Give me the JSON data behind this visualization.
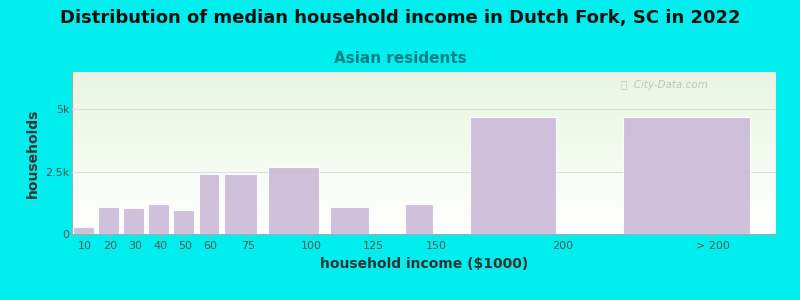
{
  "title": "Distribution of median household income in Dutch Fork, SC in 2022",
  "subtitle": "Asian residents",
  "xlabel": "household income ($1000)",
  "ylabel": "households",
  "background_color": "#00EEEE",
  "bar_color": "#c9b8d8",
  "bar_edge_color": "#ffffff",
  "categories": [
    "10",
    "20",
    "30",
    "40",
    "50",
    "60",
    "75",
    "100",
    "125",
    "150",
    "200",
    "> 200"
  ],
  "bar_lefts": [
    5,
    15,
    25,
    35,
    45,
    55,
    65,
    82,
    107,
    137,
    162,
    222
  ],
  "bar_widths": [
    9,
    9,
    9,
    9,
    9,
    9,
    14,
    22,
    17,
    12,
    37,
    55
  ],
  "values": [
    300,
    1100,
    1050,
    1200,
    950,
    2400,
    2400,
    2700,
    1100,
    1200,
    4700,
    4700
  ],
  "ylim": [
    0,
    6500
  ],
  "yticks": [
    0,
    2500,
    5000
  ],
  "ytick_labels": [
    "0",
    "2.5k",
    "5k"
  ],
  "xlim": [
    5,
    285
  ],
  "xtick_positions": [
    10,
    20,
    30,
    40,
    50,
    60,
    75,
    100,
    125,
    150,
    200,
    260
  ],
  "xtick_labels": [
    "10",
    "20",
    "30",
    "40",
    "50",
    "60",
    "75",
    "100",
    "125",
    "150",
    "200",
    "> 200"
  ],
  "title_fontsize": 13,
  "subtitle_fontsize": 11,
  "axis_label_fontsize": 10,
  "tick_fontsize": 8,
  "watermark_text": "ⓘ  City-Data.com",
  "title_color": "#111111",
  "subtitle_color": "#008080",
  "axis_label_color": "#333333",
  "tick_color": "#555555",
  "grid_color": "#dddddd",
  "plot_grad_top": "#e8f5e0",
  "plot_grad_bottom": "#ffffff"
}
